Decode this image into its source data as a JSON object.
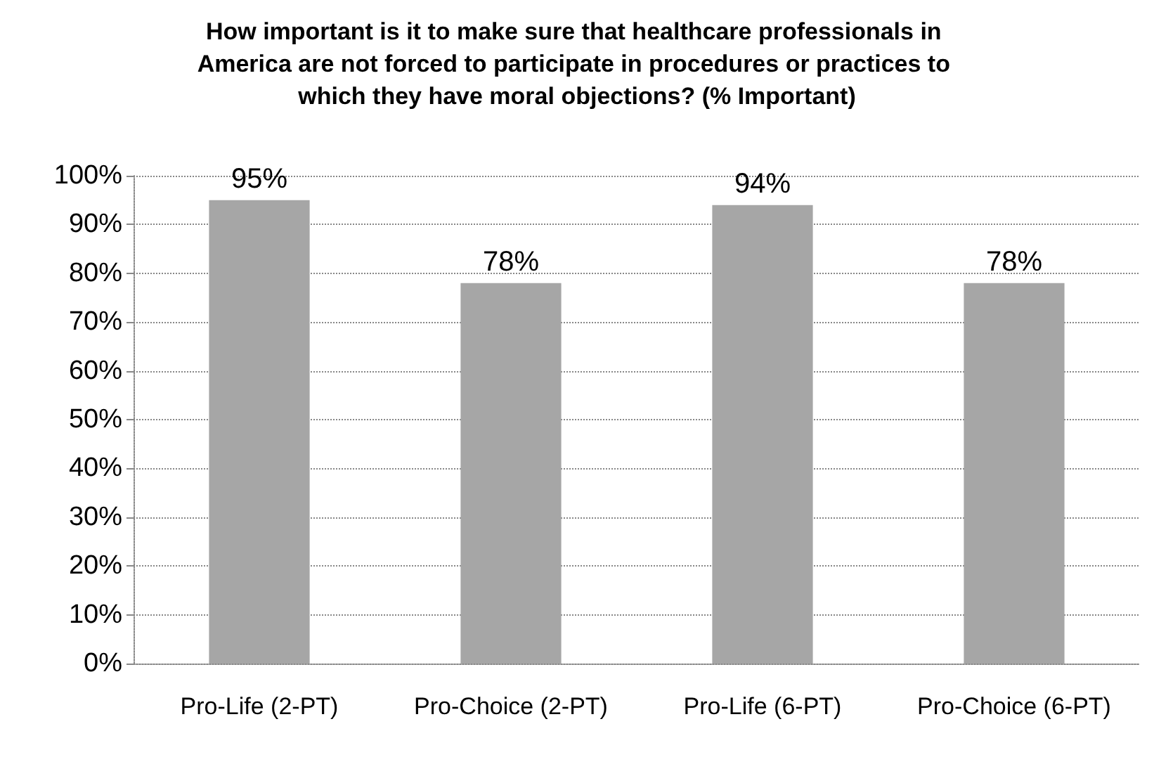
{
  "chart_data": {
    "type": "bar",
    "title": "How important is it to make sure that healthcare professionals in America are not forced to participate in procedures or practices to which they have moral objections? (% Important)",
    "categories": [
      "Pro-Life (2-PT)",
      "Pro-Choice (2-PT)",
      "Pro-Life (6-PT)",
      "Pro-Choice (6-PT)"
    ],
    "values": [
      95,
      78,
      94,
      78
    ],
    "value_labels": [
      "95%",
      "78%",
      "94%",
      "78%"
    ],
    "color": "#a6a6a6",
    "ylim": [
      0,
      100
    ],
    "yticks": [
      {
        "value": 0,
        "label": "0%"
      },
      {
        "value": 10,
        "label": "10%"
      },
      {
        "value": 20,
        "label": "20%"
      },
      {
        "value": 30,
        "label": "30%"
      },
      {
        "value": 40,
        "label": "40%"
      },
      {
        "value": 50,
        "label": "50%"
      },
      {
        "value": 60,
        "label": "60%"
      },
      {
        "value": 70,
        "label": "70%"
      },
      {
        "value": 80,
        "label": "80%"
      },
      {
        "value": 90,
        "label": "90%"
      },
      {
        "value": 100,
        "label": "100%"
      }
    ],
    "grid": "y"
  }
}
